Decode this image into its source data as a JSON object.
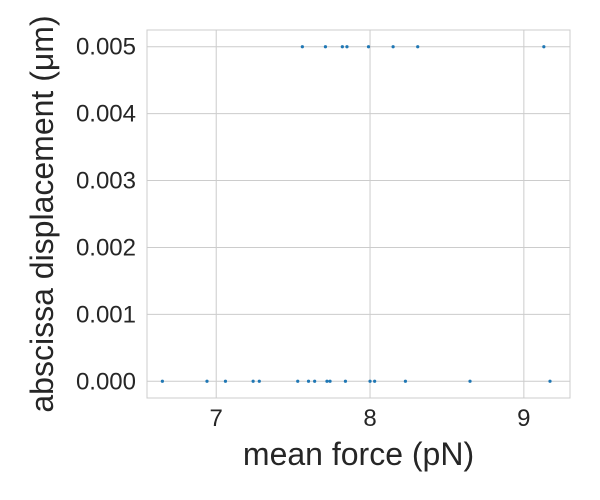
{
  "chart_data": {
    "type": "scatter",
    "title": "",
    "xlabel": "mean force (pN)",
    "ylabel": "abscissa displacement (μm)",
    "xlim": [
      6.55,
      9.3
    ],
    "ylim": [
      -0.00025,
      0.00525
    ],
    "x_ticks": [
      7,
      8,
      9
    ],
    "x_tick_labels": [
      "7",
      "8",
      "9"
    ],
    "y_ticks": [
      0.0,
      0.001,
      0.002,
      0.003,
      0.004,
      0.005
    ],
    "y_tick_labels": [
      "0.000",
      "0.001",
      "0.002",
      "0.003",
      "0.004",
      "0.005"
    ],
    "grid": true,
    "marker_color": "#1f77b4",
    "series": [
      {
        "points": [
          {
            "x": 6.65,
            "y": 0.0
          },
          {
            "x": 6.94,
            "y": 0.0
          },
          {
            "x": 7.06,
            "y": 0.0
          },
          {
            "x": 7.24,
            "y": 0.0
          },
          {
            "x": 7.28,
            "y": 0.0
          },
          {
            "x": 7.53,
            "y": 0.0
          },
          {
            "x": 7.6,
            "y": 0.0
          },
          {
            "x": 7.64,
            "y": 0.0
          },
          {
            "x": 7.72,
            "y": 0.0
          },
          {
            "x": 7.74,
            "y": 0.0
          },
          {
            "x": 7.84,
            "y": 0.0
          },
          {
            "x": 8.0,
            "y": 0.0
          },
          {
            "x": 8.03,
            "y": 0.0
          },
          {
            "x": 8.23,
            "y": 0.0
          },
          {
            "x": 8.65,
            "y": 0.0
          },
          {
            "x": 9.17,
            "y": 0.0
          },
          {
            "x": 7.56,
            "y": 0.005
          },
          {
            "x": 7.71,
            "y": 0.005
          },
          {
            "x": 7.82,
            "y": 0.005
          },
          {
            "x": 7.85,
            "y": 0.005
          },
          {
            "x": 7.99,
            "y": 0.005
          },
          {
            "x": 8.15,
            "y": 0.005
          },
          {
            "x": 8.31,
            "y": 0.005
          },
          {
            "x": 9.13,
            "y": 0.005
          }
        ]
      }
    ]
  }
}
